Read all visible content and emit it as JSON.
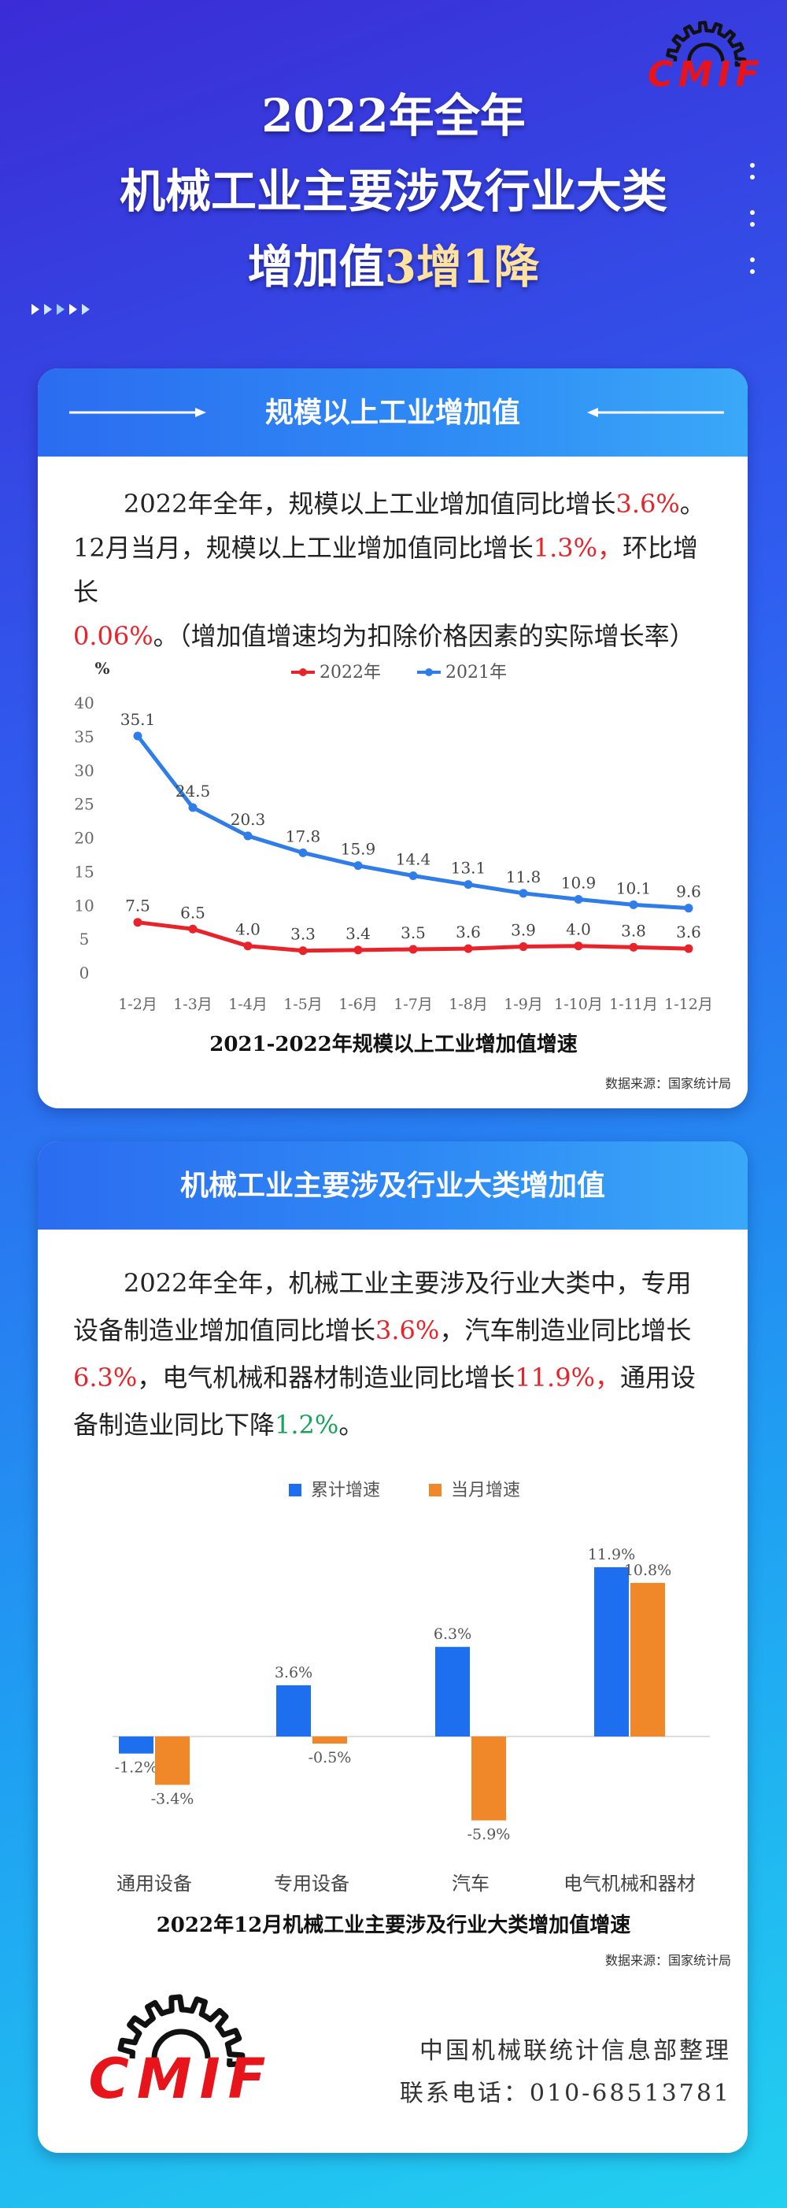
{
  "header": {
    "title_lines": [
      "2022年全年",
      "机械工业主要涉及行业大类"
    ],
    "title_line3": [
      {
        "text": "增加值"
      },
      {
        "text": "3增1降",
        "color": "#ffe2a0"
      }
    ],
    "logo": "CMIF"
  },
  "sections": [
    {
      "heading": "规模以上工业增加值",
      "paragraph": [
        {
          "text": "2022年全年，规模以上工业增加值同比增长"
        },
        {
          "text": "3.6%",
          "color": "#e8232a"
        },
        {
          "text": "。12月当月，规模以上工业增加值同比增长"
        },
        {
          "text": "1.3%，",
          "color": "#e8232a"
        },
        {
          "text": "环比增长"
        },
        {
          "text": "0.06%",
          "color": "#e8232a"
        },
        {
          "text": "。（增加值增速均为扣除价格因素的实际增长率）"
        }
      ]
    },
    {
      "heading": "机械工业主要涉及行业大类增加值",
      "paragraph": [
        {
          "text": "2022年全年，机械工业主要涉及行业大类中，专用设备制造业增加值同比增长"
        },
        {
          "text": "3.6%",
          "color": "#e8232a"
        },
        {
          "text": "，汽车制造业同比增长"
        },
        {
          "text": "6.3%",
          "color": "#e8232a"
        },
        {
          "text": "，电气机械和器材制造业同比增长"
        },
        {
          "text": "11.9%，",
          "color": "#e8232a"
        },
        {
          "text": "通用设备制造业同比下降"
        },
        {
          "text": "1.2%",
          "color": "#1aa35a"
        },
        {
          "text": "。"
        }
      ]
    }
  ],
  "chart_data": [
    {
      "type": "line",
      "title": "2021-2022年规模以上工业增加值增速",
      "source": "数据来源：国家统计局",
      "y_unit": "%",
      "categories": [
        "1-2月",
        "1-3月",
        "1-4月",
        "1-5月",
        "1-6月",
        "1-7月",
        "1-8月",
        "1-9月",
        "1-10月",
        "1-11月",
        "1-12月"
      ],
      "series": [
        {
          "name": "2022年",
          "color": "#e8232a",
          "values": [
            7.5,
            6.5,
            4.0,
            3.3,
            3.4,
            3.5,
            3.6,
            3.9,
            4.0,
            3.8,
            3.6
          ],
          "value_labels": [
            "7.5",
            "6.5",
            "4.0",
            "3.3",
            "3.4",
            "3.5",
            "3.6",
            "3.9",
            "4.0",
            "3.8",
            "3.6"
          ]
        },
        {
          "name": "2021年",
          "color": "#2f7de8",
          "values": [
            35.1,
            24.5,
            20.3,
            17.8,
            15.9,
            14.4,
            13.1,
            11.8,
            10.9,
            10.1,
            9.6
          ],
          "value_labels": [
            "35.1",
            "24.5",
            "20.3",
            "17.8",
            "15.9",
            "14.4",
            "13.1",
            "11.8",
            "10.9",
            "10.1",
            "9.6"
          ]
        }
      ],
      "ylim": [
        0,
        40
      ],
      "yticks": [
        0,
        5,
        10,
        15,
        20,
        25,
        30,
        35,
        40
      ]
    },
    {
      "type": "bar",
      "title": "2022年12月机械工业主要涉及行业大类增加值增速",
      "source": "数据来源：国家统计局",
      "categories": [
        "通用设备",
        "专用设备",
        "汽车",
        "电气机械和器材"
      ],
      "series": [
        {
          "name": "累计增速",
          "color": "#1e6ff0",
          "values": [
            -1.2,
            3.6,
            6.3,
            11.9
          ],
          "value_labels": [
            "-1.2%",
            "3.6%",
            "6.3%",
            "11.9%"
          ]
        },
        {
          "name": "当月增速",
          "color": "#f0882a",
          "values": [
            -3.4,
            -0.5,
            -5.9,
            10.8
          ],
          "value_labels": [
            "-3.4%",
            "-0.5%",
            "-5.9%",
            "10.8%"
          ]
        }
      ]
    }
  ],
  "footer": {
    "org": "中国机械联统计信息部整理",
    "contact": "联系电话：010-68513781"
  }
}
